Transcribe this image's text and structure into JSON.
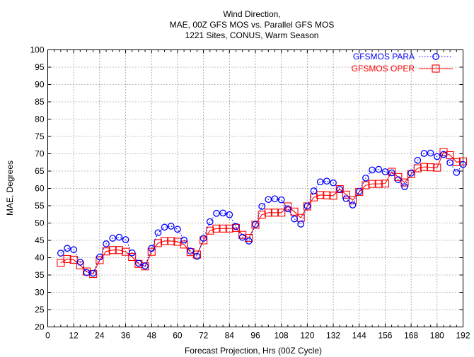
{
  "chart_data": {
    "type": "line",
    "title_lines": [
      "Wind Direction,",
      "MAE, 00Z GFS MOS vs. Parallel GFS MOS",
      "1221 Sites, CONUS, Warm Season"
    ],
    "xlabel": "Forecast Projection, Hrs (00Z Cycle)",
    "ylabel": "MAE, Degrees",
    "xlim": [
      0,
      192
    ],
    "ylim": [
      20,
      100
    ],
    "xticks": [
      0,
      12,
      24,
      36,
      48,
      60,
      72,
      84,
      96,
      108,
      120,
      132,
      144,
      156,
      168,
      180,
      192
    ],
    "yticks": [
      20,
      25,
      30,
      35,
      40,
      45,
      50,
      55,
      60,
      65,
      70,
      75,
      80,
      85,
      90,
      95,
      100
    ],
    "grid": true,
    "legend_position": "top-right",
    "x": [
      6,
      9,
      12,
      15,
      18,
      21,
      24,
      27,
      30,
      33,
      36,
      39,
      42,
      45,
      48,
      51,
      54,
      57,
      60,
      63,
      66,
      69,
      72,
      75,
      78,
      81,
      84,
      87,
      90,
      93,
      96,
      99,
      102,
      105,
      108,
      111,
      114,
      117,
      120,
      123,
      126,
      129,
      132,
      135,
      138,
      141,
      144,
      147,
      150,
      153,
      156,
      159,
      162,
      165,
      168,
      171,
      174,
      177,
      180,
      183,
      186,
      189,
      192
    ],
    "series": [
      {
        "name": "GFSMOS PARA",
        "color": "#0000ff",
        "line_style": "dotted",
        "marker": "circle",
        "values": [
          41.3,
          42.7,
          42.3,
          38.7,
          35.7,
          35.5,
          40.2,
          44.0,
          45.6,
          45.9,
          45.2,
          41.4,
          38.4,
          37.6,
          42.7,
          47.2,
          48.8,
          49.1,
          48.2,
          45.1,
          41.9,
          40.4,
          45.6,
          50.4,
          52.8,
          52.9,
          52.4,
          49.0,
          45.9,
          44.8,
          49.6,
          54.8,
          56.8,
          57.0,
          56.7,
          54.1,
          51.2,
          49.7,
          54.9,
          59.3,
          61.9,
          62.1,
          61.6,
          59.7,
          57.0,
          55.2,
          59.1,
          63.0,
          65.3,
          65.5,
          64.8,
          64.5,
          62.5,
          60.5,
          64.4,
          68.1,
          70.1,
          70.2,
          69.2,
          69.8,
          67.4,
          64.6,
          66.9
        ]
      },
      {
        "name": "GFSMOS OPER",
        "color": "#ff0000",
        "line_style": "solid",
        "marker": "square",
        "values": [
          38.5,
          39.6,
          39.4,
          37.8,
          36.0,
          35.3,
          39.3,
          41.8,
          42.2,
          42.2,
          41.7,
          40.2,
          38.2,
          37.5,
          41.7,
          44.2,
          44.8,
          44.8,
          44.6,
          43.8,
          41.6,
          40.9,
          45.0,
          47.8,
          48.4,
          48.4,
          48.4,
          48.6,
          46.6,
          45.7,
          49.5,
          52.4,
          53.0,
          53.0,
          53.0,
          54.8,
          53.3,
          51.5,
          54.8,
          57.4,
          58.1,
          58.0,
          57.9,
          59.8,
          58.2,
          56.6,
          59.0,
          60.9,
          61.3,
          61.3,
          61.4,
          64.8,
          63.3,
          61.7,
          64.1,
          65.8,
          66.2,
          66.1,
          66.0,
          70.5,
          69.6,
          67.6,
          67.8
        ]
      }
    ]
  }
}
